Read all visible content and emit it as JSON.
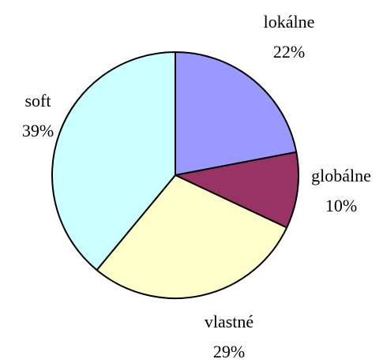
{
  "chart_data": {
    "type": "pie",
    "categories": [
      "lokálne",
      "globálne",
      "vlastné",
      "soft"
    ],
    "values": [
      22,
      10,
      29,
      39
    ],
    "value_labels": [
      "22%",
      "10%",
      "29%",
      "39%"
    ],
    "colors": [
      "#9999ff",
      "#993366",
      "#ffffcc",
      "#ccffff"
    ]
  }
}
